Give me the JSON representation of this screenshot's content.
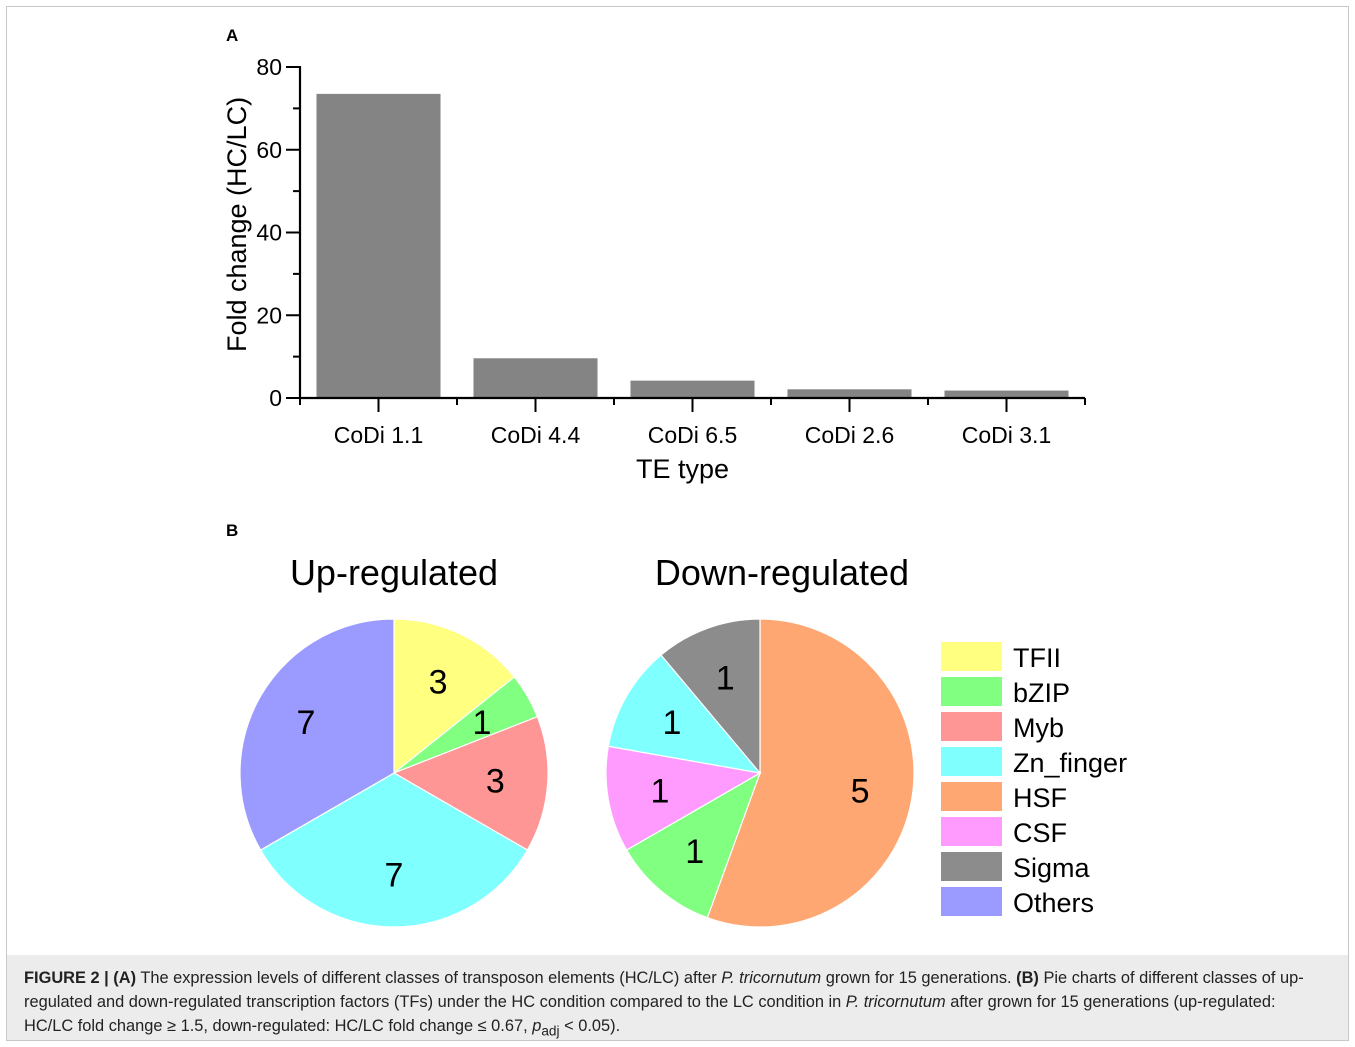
{
  "panel_a_letter": "A",
  "panel_b_letter": "B",
  "chart_data": [
    {
      "type": "bar",
      "categories": [
        "CoDi 1.1",
        "CoDi 4.4",
        "CoDi 6.5",
        "CoDi 2.6",
        "CoDi 3.1"
      ],
      "values": [
        73.5,
        9.6,
        4.2,
        2.1,
        1.8
      ],
      "xlabel": "TE type",
      "ylabel": "Fold change (HC/LC)",
      "ylim": [
        0,
        80
      ],
      "yticks": [
        "0",
        "20",
        "40",
        "60",
        "80"
      ],
      "bar_color": "#848484"
    },
    {
      "type": "pie",
      "title": "Up-regulated",
      "slices": [
        {
          "label": "TFII",
          "value": 3,
          "color": "#ffff80"
        },
        {
          "label": "bZIP",
          "value": 1,
          "color": "#80ff80"
        },
        {
          "label": "Myb",
          "value": 3,
          "color": "#ff9696"
        },
        {
          "label": "Zn_finger",
          "value": 7,
          "color": "#80ffff"
        },
        {
          "label": "Others",
          "value": 7,
          "color": "#9b9bff"
        }
      ],
      "value_labels": [
        "3",
        "1",
        "3",
        "7",
        "7"
      ]
    },
    {
      "type": "pie",
      "title": "Down-regulated",
      "slices": [
        {
          "label": "HSF",
          "value": 5,
          "color": "#ffa772"
        },
        {
          "label": "bZIP",
          "value": 1,
          "color": "#80ff80"
        },
        {
          "label": "CSF",
          "value": 1,
          "color": "#ff9bff"
        },
        {
          "label": "Zn_finger",
          "value": 1,
          "color": "#80ffff"
        },
        {
          "label": "Sigma",
          "value": 1,
          "color": "#8c8c8c"
        }
      ],
      "value_labels": [
        "5",
        "1",
        "1",
        "1",
        "1"
      ]
    }
  ],
  "legend": [
    {
      "label": "TFII",
      "color": "#ffff80"
    },
    {
      "label": "bZIP",
      "color": "#80ff80"
    },
    {
      "label": "Myb",
      "color": "#ff9696"
    },
    {
      "label": "Zn_finger",
      "color": "#80ffff"
    },
    {
      "label": "HSF",
      "color": "#ffa772"
    },
    {
      "label": "CSF",
      "color": "#ff9bff"
    },
    {
      "label": "Sigma",
      "color": "#8c8c8c"
    },
    {
      "label": "Others",
      "color": "#9b9bff"
    }
  ],
  "caption": {
    "figure_label": "FIGURE 2 |",
    "part_a": "(A)",
    "text_a_1": " The expression levels of different classes of transposon elements (HC/LC) after ",
    "species_1": "P. tricornutum",
    "text_a_2": " grown for 15 generations. ",
    "part_b": "(B)",
    "text_b_1": " Pie charts of different classes of up-regulated and down-regulated transcription factors (TFs) under the HC condition compared to the LC condition in ",
    "species_2": "P. tricornutum",
    "text_b_2": " after grown for 15 generations (up-regulated: HC/LC fold change ≥ 1.5, down-regulated: HC/LC fold change ≤ 0.67, ",
    "p_symbol": "p",
    "p_subscript": "adj",
    "text_b_3": " < 0.05)."
  }
}
